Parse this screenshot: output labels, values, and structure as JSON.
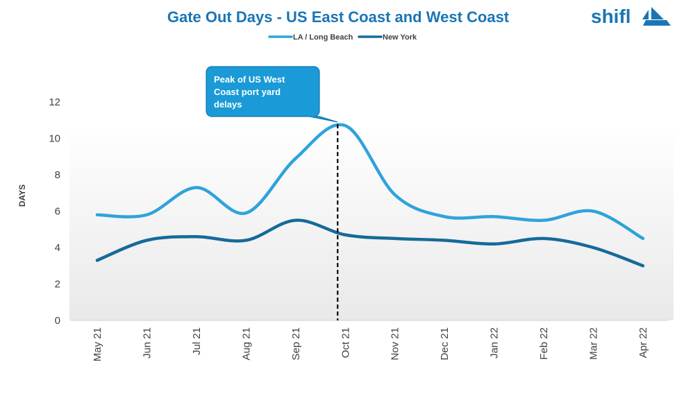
{
  "colors": {
    "title": "#1a75b5",
    "la_series": "#2ea3dc",
    "ny_series": "#166a99",
    "callout_fill": "#1a9ad6",
    "logo": "#1a75b5"
  },
  "logo": {
    "text": "shifl",
    "icon": "sailboat-icon"
  },
  "callout": {
    "lines": [
      "Peak of US West",
      "Coast port yard",
      "delays"
    ],
    "marker_category": "Oct 21"
  },
  "chart_data": {
    "type": "line",
    "title": "Gate Out Days - US East Coast and West Coast",
    "xlabel": "",
    "ylabel": "DAYS",
    "categories": [
      "May 21",
      "Jun 21",
      "Jul 21",
      "Aug 21",
      "Sep 21",
      "Oct 21",
      "Nov 21",
      "Dec 21",
      "Jan 22",
      "Feb 22",
      "Mar 22",
      "Apr 22"
    ],
    "yticks": [
      "0",
      "2",
      "4",
      "6",
      "8",
      "10",
      "12"
    ],
    "ylim": [
      0,
      12
    ],
    "legend_position": "top-center",
    "grid": false,
    "series": [
      {
        "name": "LA / Long Beach",
        "color_key": "la_series",
        "values": [
          5.8,
          5.8,
          7.3,
          5.9,
          8.9,
          10.7,
          6.9,
          5.7,
          5.7,
          5.5,
          6.0,
          4.5
        ]
      },
      {
        "name": "New York",
        "color_key": "ny_series",
        "values": [
          3.3,
          4.4,
          4.6,
          4.4,
          5.5,
          4.7,
          4.5,
          4.4,
          4.2,
          4.5,
          4.0,
          3.0
        ]
      }
    ]
  }
}
